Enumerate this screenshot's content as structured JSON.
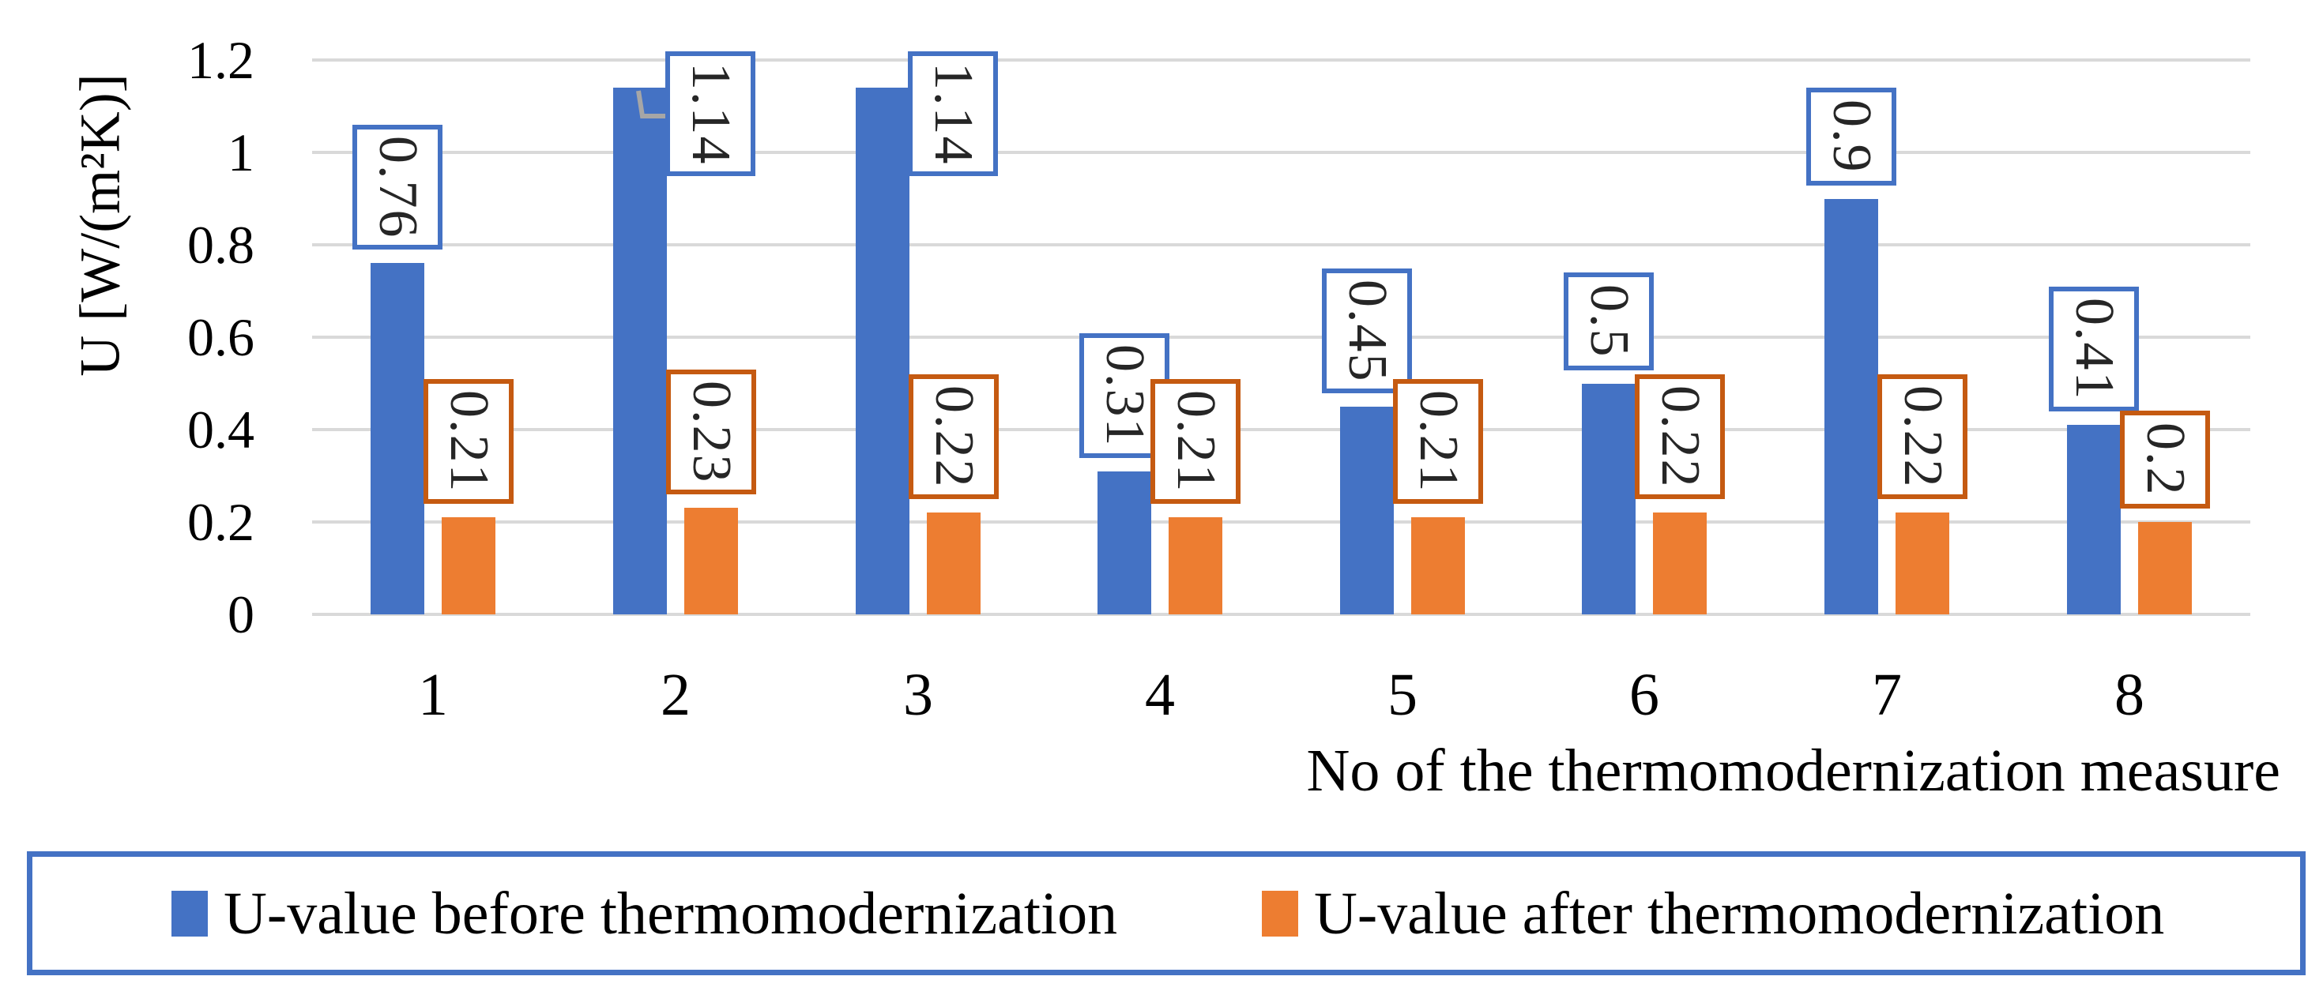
{
  "figure": {
    "background": "#ffffff",
    "text_color": "#000000"
  },
  "chart_data": {
    "type": "bar",
    "categories": [
      "1",
      "2",
      "3",
      "4",
      "5",
      "6",
      "7",
      "8"
    ],
    "series": [
      {
        "name": "U-value before thermomodernization",
        "color": "#4472C4",
        "data_label_border_color": "#4472C4",
        "values": [
          0.76,
          1.14,
          1.14,
          0.31,
          0.45,
          0.5,
          0.9,
          0.41
        ],
        "data_labels": [
          "0.76",
          "1.14",
          "1.14",
          "0.31",
          "0.45",
          "0.5",
          "0.9",
          "0.41"
        ]
      },
      {
        "name": "U-value after thermomodernization",
        "color": "#ED7D31",
        "data_label_border_color": "#C55A11",
        "values": [
          0.21,
          0.23,
          0.22,
          0.21,
          0.21,
          0.22,
          0.22,
          0.2
        ],
        "data_labels": [
          "0.21",
          "0.23",
          "0.22",
          "0.21",
          "0.21",
          "0.22",
          "0.22",
          "0.2"
        ]
      }
    ],
    "xlabel": "No of the thermomodernization measure",
    "ylabel": "U [W/(m²K)]",
    "ylim": [
      0,
      1.2
    ],
    "ytick_labels": [
      "0",
      "0.2",
      "0.4",
      "0.6",
      "0.8",
      "1",
      "1.2"
    ],
    "grid": "horizontal",
    "gridline_color": "#D9D9D9",
    "data_label_text_color": "#262626",
    "leader_line_color": "#A6A6A6",
    "legend_position": "bottom",
    "legend_border_color": "#4472C4",
    "data_label_overrides": [
      {
        "series": 0,
        "category_index": 1,
        "position": "right-of-top",
        "leader_line": true
      },
      {
        "series": 0,
        "category_index": 2,
        "position": "right-of-top",
        "leader_line": false
      }
    ]
  }
}
